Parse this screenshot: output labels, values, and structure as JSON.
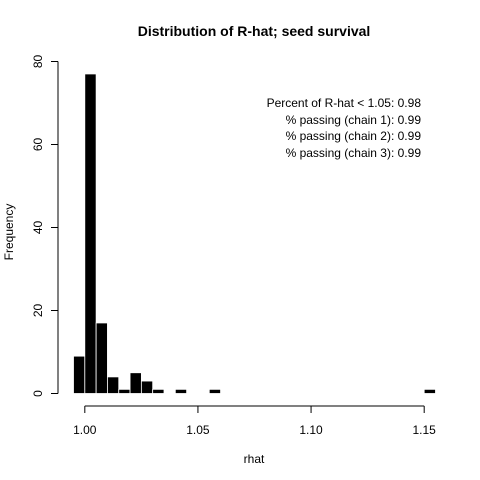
{
  "chart_data": {
    "type": "bar",
    "title": "Distribution of R-hat; seed survival",
    "xlabel": "rhat",
    "ylabel": "Frequency",
    "bin_width": 0.005,
    "bins": [
      {
        "start": 0.995,
        "end": 1.0,
        "count": 9
      },
      {
        "start": 1.0,
        "end": 1.005,
        "count": 77
      },
      {
        "start": 1.005,
        "end": 1.01,
        "count": 17
      },
      {
        "start": 1.01,
        "end": 1.015,
        "count": 4
      },
      {
        "start": 1.015,
        "end": 1.02,
        "count": 1
      },
      {
        "start": 1.02,
        "end": 1.025,
        "count": 5
      },
      {
        "start": 1.025,
        "end": 1.03,
        "count": 3
      },
      {
        "start": 1.03,
        "end": 1.035,
        "count": 1
      },
      {
        "start": 1.035,
        "end": 1.04,
        "count": 0
      },
      {
        "start": 1.04,
        "end": 1.045,
        "count": 1
      },
      {
        "start": 1.045,
        "end": 1.05,
        "count": 0
      },
      {
        "start": 1.05,
        "end": 1.055,
        "count": 0
      },
      {
        "start": 1.055,
        "end": 1.06,
        "count": 1
      },
      {
        "start": 1.15,
        "end": 1.155,
        "count": 1
      }
    ],
    "xlim": [
      0.995,
      1.155
    ],
    "ylim": [
      0,
      80
    ],
    "xticks": [
      {
        "value": 1.0,
        "label": "1.00"
      },
      {
        "value": 1.05,
        "label": "1.05"
      },
      {
        "value": 1.1,
        "label": "1.10"
      },
      {
        "value": 1.15,
        "label": "1.15"
      }
    ],
    "yticks": [
      {
        "value": 0,
        "label": "0"
      },
      {
        "value": 20,
        "label": "20"
      },
      {
        "value": 40,
        "label": "40"
      },
      {
        "value": 60,
        "label": "60"
      },
      {
        "value": 80,
        "label": "80"
      }
    ],
    "annotations": [
      "Percent of R-hat < 1.05: 0.98",
      "% passing (chain 1): 0.99",
      "% passing (chain 2): 0.99",
      "% passing (chain 3): 0.99"
    ],
    "bar_color": "#000000",
    "bar_border": "#ffffff",
    "grid": false
  }
}
